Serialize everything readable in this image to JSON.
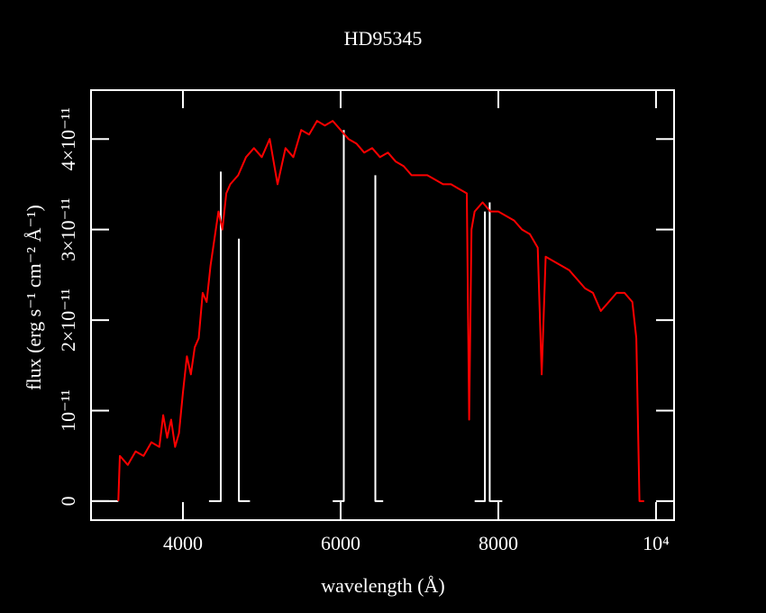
{
  "chart_data": {
    "type": "line",
    "title": "HD95345",
    "xlabel": "wavelength (Å)",
    "ylabel": "flux (erg s⁻¹ cm⁻² Å⁻¹)",
    "xlim": [
      2834,
      10229
    ],
    "ylim": [
      -2.1e-12,
      4.54e-11
    ],
    "xticks": [
      4000,
      6000,
      8000,
      {
        "value": 10000,
        "label": "10⁴"
      }
    ],
    "yticks": [
      0,
      {
        "value": 1e-11,
        "label": "10⁻¹¹"
      },
      {
        "value": 2e-11,
        "label": "2×10⁻¹¹"
      },
      {
        "value": 3e-11,
        "label": "3×10⁻¹¹"
      },
      {
        "value": 4e-11,
        "label": "4×10⁻¹¹"
      }
    ],
    "series": [
      {
        "color": "#ffffff",
        "x": [
          2860,
          3180,
          3180,
          4330,
          4480,
          4480,
          4480,
          4710,
          4710,
          4850,
          4850,
          5900,
          6040,
          6040,
          6040,
          6440,
          6440,
          6540,
          6540,
          7700,
          7830,
          7830,
          7830,
          7890,
          7890,
          8050
        ],
        "values": [
          0,
          0,
          null,
          0,
          0,
          3.64e-11,
          null,
          2.9e-11,
          0,
          0,
          null,
          0,
          0,
          4.1e-11,
          null,
          3.6e-11,
          0,
          0,
          null,
          0,
          0,
          3.2e-11,
          null,
          3.3e-11,
          0,
          0
        ]
      },
      {
        "color": "#ff0000",
        "x": [
          3180,
          3200,
          3300,
          3400,
          3500,
          3600,
          3700,
          3750,
          3800,
          3850,
          3900,
          3950,
          4000,
          4050,
          4100,
          4150,
          4200,
          4250,
          4300,
          4350,
          4400,
          4450,
          4500,
          4550,
          4600,
          4700,
          4800,
          4900,
          5000,
          5100,
          5200,
          5300,
          5400,
          5500,
          5600,
          5700,
          5800,
          5900,
          6000,
          6100,
          6200,
          6300,
          6400,
          6500,
          6600,
          6700,
          6800,
          6900,
          7000,
          7100,
          7200,
          7300,
          7400,
          7500,
          7600,
          7630,
          7660,
          7700,
          7800,
          7900,
          8000,
          8100,
          8200,
          8300,
          8400,
          8500,
          8550,
          8600,
          8700,
          8800,
          8900,
          9000,
          9100,
          9200,
          9300,
          9400,
          9500,
          9600,
          9700,
          9750,
          9790,
          9850
        ],
        "values": [
          0,
          5e-12,
          4e-12,
          5.5e-12,
          5e-12,
          6.5e-12,
          6e-12,
          9.5e-12,
          7e-12,
          9e-12,
          6e-12,
          7.5e-12,
          1.2e-11,
          1.6e-11,
          1.4e-11,
          1.7e-11,
          1.8e-11,
          2.3e-11,
          2.2e-11,
          2.6e-11,
          2.9e-11,
          3.2e-11,
          3e-11,
          3.4e-11,
          3.5e-11,
          3.6e-11,
          3.8e-11,
          3.9e-11,
          3.8e-11,
          4e-11,
          3.5e-11,
          3.9e-11,
          3.8e-11,
          4.1e-11,
          4.05e-11,
          4.2e-11,
          4.15e-11,
          4.2e-11,
          4.1e-11,
          4e-11,
          3.95e-11,
          3.85e-11,
          3.9e-11,
          3.8e-11,
          3.85e-11,
          3.75e-11,
          3.7e-11,
          3.6e-11,
          3.6e-11,
          3.6e-11,
          3.55e-11,
          3.5e-11,
          3.5e-11,
          3.45e-11,
          3.4e-11,
          9e-12,
          3e-11,
          3.2e-11,
          3.3e-11,
          3.2e-11,
          3.2e-11,
          3.15e-11,
          3.1e-11,
          3e-11,
          2.95e-11,
          2.8e-11,
          1.4e-11,
          2.7e-11,
          2.65e-11,
          2.6e-11,
          2.55e-11,
          2.45e-11,
          2.35e-11,
          2.3e-11,
          2.1e-11,
          2.2e-11,
          2.3e-11,
          2.3e-11,
          2.2e-11,
          1.8e-11,
          0,
          0
        ]
      }
    ]
  }
}
